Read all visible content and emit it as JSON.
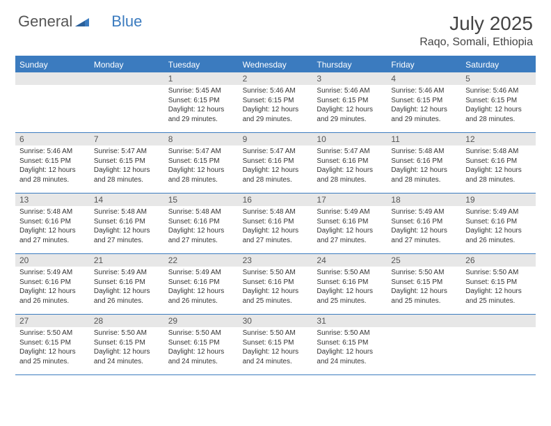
{
  "logo": {
    "text1": "General",
    "text2": "Blue"
  },
  "title": "July 2025",
  "location": "Raqo, Somali, Ethiopia",
  "colors": {
    "accent": "#3b7bbf",
    "num_bg": "#e7e7e7",
    "text": "#333333"
  },
  "day_names": [
    "Sunday",
    "Monday",
    "Tuesday",
    "Wednesday",
    "Thursday",
    "Friday",
    "Saturday"
  ],
  "weeks": [
    [
      {
        "n": "",
        "sr": "",
        "ss": "",
        "dl": ""
      },
      {
        "n": "",
        "sr": "",
        "ss": "",
        "dl": ""
      },
      {
        "n": "1",
        "sr": "5:45 AM",
        "ss": "6:15 PM",
        "dl": "12 hours and 29 minutes."
      },
      {
        "n": "2",
        "sr": "5:46 AM",
        "ss": "6:15 PM",
        "dl": "12 hours and 29 minutes."
      },
      {
        "n": "3",
        "sr": "5:46 AM",
        "ss": "6:15 PM",
        "dl": "12 hours and 29 minutes."
      },
      {
        "n": "4",
        "sr": "5:46 AM",
        "ss": "6:15 PM",
        "dl": "12 hours and 29 minutes."
      },
      {
        "n": "5",
        "sr": "5:46 AM",
        "ss": "6:15 PM",
        "dl": "12 hours and 28 minutes."
      }
    ],
    [
      {
        "n": "6",
        "sr": "5:46 AM",
        "ss": "6:15 PM",
        "dl": "12 hours and 28 minutes."
      },
      {
        "n": "7",
        "sr": "5:47 AM",
        "ss": "6:15 PM",
        "dl": "12 hours and 28 minutes."
      },
      {
        "n": "8",
        "sr": "5:47 AM",
        "ss": "6:15 PM",
        "dl": "12 hours and 28 minutes."
      },
      {
        "n": "9",
        "sr": "5:47 AM",
        "ss": "6:16 PM",
        "dl": "12 hours and 28 minutes."
      },
      {
        "n": "10",
        "sr": "5:47 AM",
        "ss": "6:16 PM",
        "dl": "12 hours and 28 minutes."
      },
      {
        "n": "11",
        "sr": "5:48 AM",
        "ss": "6:16 PM",
        "dl": "12 hours and 28 minutes."
      },
      {
        "n": "12",
        "sr": "5:48 AM",
        "ss": "6:16 PM",
        "dl": "12 hours and 28 minutes."
      }
    ],
    [
      {
        "n": "13",
        "sr": "5:48 AM",
        "ss": "6:16 PM",
        "dl": "12 hours and 27 minutes."
      },
      {
        "n": "14",
        "sr": "5:48 AM",
        "ss": "6:16 PM",
        "dl": "12 hours and 27 minutes."
      },
      {
        "n": "15",
        "sr": "5:48 AM",
        "ss": "6:16 PM",
        "dl": "12 hours and 27 minutes."
      },
      {
        "n": "16",
        "sr": "5:48 AM",
        "ss": "6:16 PM",
        "dl": "12 hours and 27 minutes."
      },
      {
        "n": "17",
        "sr": "5:49 AM",
        "ss": "6:16 PM",
        "dl": "12 hours and 27 minutes."
      },
      {
        "n": "18",
        "sr": "5:49 AM",
        "ss": "6:16 PM",
        "dl": "12 hours and 27 minutes."
      },
      {
        "n": "19",
        "sr": "5:49 AM",
        "ss": "6:16 PM",
        "dl": "12 hours and 26 minutes."
      }
    ],
    [
      {
        "n": "20",
        "sr": "5:49 AM",
        "ss": "6:16 PM",
        "dl": "12 hours and 26 minutes."
      },
      {
        "n": "21",
        "sr": "5:49 AM",
        "ss": "6:16 PM",
        "dl": "12 hours and 26 minutes."
      },
      {
        "n": "22",
        "sr": "5:49 AM",
        "ss": "6:16 PM",
        "dl": "12 hours and 26 minutes."
      },
      {
        "n": "23",
        "sr": "5:50 AM",
        "ss": "6:16 PM",
        "dl": "12 hours and 25 minutes."
      },
      {
        "n": "24",
        "sr": "5:50 AM",
        "ss": "6:16 PM",
        "dl": "12 hours and 25 minutes."
      },
      {
        "n": "25",
        "sr": "5:50 AM",
        "ss": "6:15 PM",
        "dl": "12 hours and 25 minutes."
      },
      {
        "n": "26",
        "sr": "5:50 AM",
        "ss": "6:15 PM",
        "dl": "12 hours and 25 minutes."
      }
    ],
    [
      {
        "n": "27",
        "sr": "5:50 AM",
        "ss": "6:15 PM",
        "dl": "12 hours and 25 minutes."
      },
      {
        "n": "28",
        "sr": "5:50 AM",
        "ss": "6:15 PM",
        "dl": "12 hours and 24 minutes."
      },
      {
        "n": "29",
        "sr": "5:50 AM",
        "ss": "6:15 PM",
        "dl": "12 hours and 24 minutes."
      },
      {
        "n": "30",
        "sr": "5:50 AM",
        "ss": "6:15 PM",
        "dl": "12 hours and 24 minutes."
      },
      {
        "n": "31",
        "sr": "5:50 AM",
        "ss": "6:15 PM",
        "dl": "12 hours and 24 minutes."
      },
      {
        "n": "",
        "sr": "",
        "ss": "",
        "dl": ""
      },
      {
        "n": "",
        "sr": "",
        "ss": "",
        "dl": ""
      }
    ]
  ],
  "labels": {
    "sunrise": "Sunrise:",
    "sunset": "Sunset:",
    "daylight": "Daylight:"
  }
}
